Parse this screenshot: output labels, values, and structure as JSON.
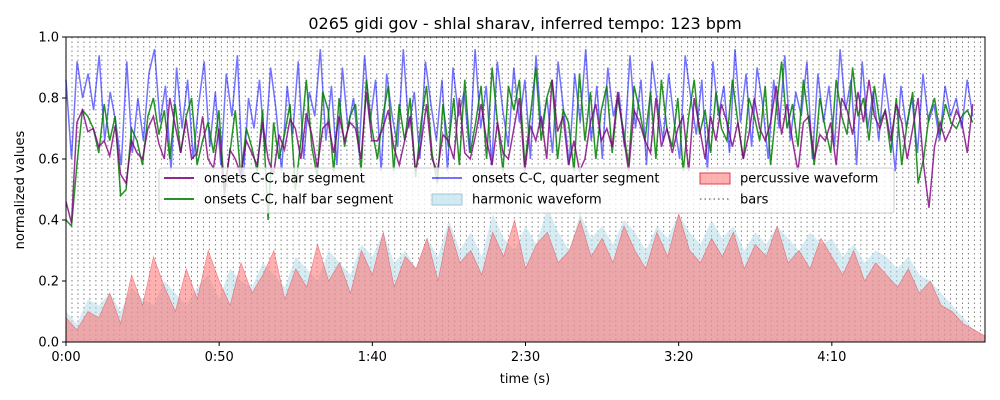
{
  "chart_data": {
    "type": "line",
    "title": "0265 gidi gov - shlal sharav, inferred tempo: 123 bpm",
    "xlabel": "time (s)",
    "ylabel": "normalized values",
    "xlim": [
      0,
      300
    ],
    "ylim": [
      0,
      1.0
    ],
    "x_ticks": [
      {
        "value": 0,
        "label": "0:00"
      },
      {
        "value": 50,
        "label": "0:50"
      },
      {
        "value": 100,
        "label": "1:40"
      },
      {
        "value": 150,
        "label": "2:30"
      },
      {
        "value": 200,
        "label": "3:20"
      },
      {
        "value": 250,
        "label": "4:10"
      }
    ],
    "y_ticks": [
      {
        "value": 0.0,
        "label": "0.0"
      },
      {
        "value": 0.2,
        "label": "0.2"
      },
      {
        "value": 0.4,
        "label": "0.4"
      },
      {
        "value": 0.6,
        "label": "0.6"
      },
      {
        "value": 0.8,
        "label": "0.8"
      },
      {
        "value": 1.0,
        "label": "1.0"
      }
    ],
    "legend_position": "center",
    "bars_period_s": 1.951,
    "series": [
      {
        "name": "onsets C-C, bar segment",
        "kind": "line",
        "color": "#800080",
        "values": [
          0.46,
          0.39,
          0.72,
          0.76,
          0.69,
          0.7,
          0.64,
          0.66,
          0.61,
          0.71,
          0.55,
          0.52,
          0.66,
          0.62,
          0.6,
          0.7,
          0.74,
          0.65,
          0.6,
          0.8,
          0.71,
          0.62,
          0.73,
          0.6,
          0.62,
          0.74,
          0.6,
          0.57,
          0.7,
          0.48,
          0.63,
          0.6,
          0.55,
          0.66,
          0.62,
          0.58,
          0.72,
          0.6,
          0.55,
          0.68,
          0.63,
          0.73,
          0.7,
          0.6,
          0.75,
          0.68,
          0.57,
          0.7,
          0.72,
          0.62,
          0.74,
          0.66,
          0.72,
          0.7,
          0.6,
          0.82,
          0.66,
          0.66,
          0.7,
          0.76,
          0.64,
          0.58,
          0.66,
          0.74,
          0.56,
          0.65,
          0.78,
          0.6,
          0.56,
          0.68,
          0.66,
          0.6,
          0.8,
          0.62,
          0.6,
          0.68,
          0.78,
          0.66,
          0.58,
          0.72,
          0.62,
          0.6,
          0.7,
          0.8,
          0.56,
          0.71,
          0.66,
          0.74,
          0.6,
          0.86,
          0.69,
          0.74,
          0.58,
          0.66,
          0.56,
          0.6,
          0.72,
          0.78,
          0.66,
          0.7,
          0.64,
          0.82,
          0.68,
          0.56,
          0.76,
          0.72,
          0.66,
          0.62,
          0.8,
          0.64,
          0.7,
          0.62,
          0.7,
          0.74,
          0.56,
          0.8,
          0.7,
          0.6,
          0.74,
          0.66,
          0.78,
          0.72,
          0.64,
          0.72,
          0.6,
          0.68,
          0.8,
          0.7,
          0.66,
          0.72,
          0.84,
          0.68,
          0.78,
          0.66,
          0.56,
          0.72,
          0.74,
          0.6,
          0.68,
          0.66,
          0.72,
          0.58,
          0.8,
          0.76,
          0.68,
          0.82,
          0.72,
          0.86,
          0.74,
          0.7,
          0.76,
          0.66,
          0.78,
          0.72,
          0.6,
          0.7,
          0.8,
          0.58,
          0.44,
          0.64,
          0.72,
          0.66,
          0.7,
          0.76,
          0.72,
          0.62,
          0.78
        ]
      },
      {
        "name": "onsets C-C, half bar segment",
        "kind": "line",
        "color": "#008000",
        "values": [
          0.4,
          0.38,
          0.58,
          0.76,
          0.74,
          0.7,
          0.62,
          0.78,
          0.66,
          0.74,
          0.48,
          0.5,
          0.7,
          0.66,
          0.58,
          0.74,
          0.8,
          0.68,
          0.76,
          0.6,
          0.78,
          0.62,
          0.74,
          0.8,
          0.58,
          0.66,
          0.72,
          0.62,
          0.76,
          0.5,
          0.62,
          0.76,
          0.54,
          0.7,
          0.64,
          0.56,
          0.76,
          0.4,
          0.72,
          0.6,
          0.68,
          0.78,
          0.5,
          0.66,
          0.86,
          0.64,
          0.54,
          0.82,
          0.76,
          0.56,
          0.8,
          0.64,
          0.74,
          0.78,
          0.56,
          0.86,
          0.7,
          0.6,
          0.74,
          0.84,
          0.56,
          0.78,
          0.66,
          0.8,
          0.54,
          0.72,
          0.84,
          0.62,
          0.52,
          0.78,
          0.64,
          0.8,
          0.58,
          0.86,
          0.62,
          0.72,
          0.84,
          0.6,
          0.9,
          0.72,
          0.56,
          0.84,
          0.76,
          0.86,
          0.58,
          0.74,
          0.9,
          0.66,
          0.8,
          0.86,
          0.6,
          0.76,
          0.72,
          0.56,
          0.88,
          0.66,
          0.82,
          0.6,
          0.76,
          0.84,
          0.62,
          0.8,
          0.7,
          0.58,
          0.84,
          0.76,
          0.66,
          0.82,
          0.6,
          0.86,
          0.7,
          0.64,
          0.8,
          0.56,
          0.74,
          0.86,
          0.68,
          0.76,
          0.62,
          0.82,
          0.7,
          0.66,
          0.86,
          0.72,
          0.6,
          0.8,
          0.74,
          0.66,
          0.84,
          0.58,
          0.76,
          0.92,
          0.7,
          0.78,
          0.64,
          0.86,
          0.72,
          0.58,
          0.8,
          0.7,
          0.62,
          0.86,
          0.74,
          0.68,
          0.9,
          0.74,
          0.8,
          0.66,
          0.84,
          0.72,
          0.76,
          0.62,
          0.8,
          0.58,
          0.72,
          0.82,
          0.52,
          0.6,
          0.74,
          0.8,
          0.68,
          0.78,
          0.72,
          0.7,
          0.74,
          0.76,
          0.72
        ]
      },
      {
        "name": "onsets C-C, quarter segment",
        "kind": "line",
        "color": "#0000ff",
        "opacity": 0.55,
        "values": [
          0.86,
          0.6,
          0.92,
          0.8,
          0.88,
          0.76,
          0.94,
          0.66,
          0.82,
          0.72,
          0.58,
          0.92,
          0.62,
          0.8,
          0.66,
          0.88,
          0.96,
          0.72,
          0.84,
          0.56,
          0.9,
          0.7,
          0.86,
          0.6,
          0.78,
          0.92,
          0.64,
          0.82,
          0.58,
          0.88,
          0.74,
          0.94,
          0.52,
          0.8,
          0.7,
          0.86,
          0.62,
          0.9,
          0.76,
          0.56,
          0.84,
          0.68,
          0.92,
          0.6,
          0.82,
          0.74,
          0.96,
          0.66,
          0.84,
          0.58,
          0.9,
          0.7,
          0.8,
          0.62,
          0.94,
          0.72,
          0.86,
          0.56,
          0.88,
          0.74,
          0.64,
          0.96,
          0.7,
          0.82,
          0.6,
          0.92,
          0.78,
          0.66,
          0.86,
          0.56,
          0.9,
          0.74,
          0.82,
          0.62,
          0.96,
          0.7,
          0.84,
          0.58,
          0.92,
          0.76,
          0.64,
          0.9,
          0.72,
          0.86,
          0.6,
          0.94,
          0.7,
          0.8,
          0.62,
          0.92,
          0.76,
          0.58,
          0.88,
          0.72,
          0.96,
          0.66,
          0.84,
          0.6,
          0.9,
          0.74,
          0.82,
          0.64,
          0.94,
          0.7,
          0.86,
          0.58,
          0.92,
          0.78,
          0.66,
          0.88,
          0.72,
          0.6,
          0.94,
          0.8,
          0.68,
          0.86,
          0.56,
          0.92,
          0.74,
          0.84,
          0.62,
          0.96,
          0.72,
          0.88,
          0.64,
          0.9,
          0.78,
          0.6,
          0.86,
          0.7,
          0.94,
          0.66,
          0.82,
          0.74,
          0.92,
          0.6,
          0.88,
          0.72,
          0.84,
          0.64,
          0.96,
          0.76,
          0.86,
          0.58,
          0.92,
          0.7,
          0.82,
          0.66,
          0.88,
          0.74,
          0.56,
          0.84,
          0.7,
          0.8,
          0.62,
          0.88,
          0.72,
          0.78,
          0.66,
          0.84,
          0.74,
          0.8,
          0.7,
          0.86,
          0.74
        ]
      },
      {
        "name": "harmonic waveform",
        "kind": "area",
        "color": "#add8e6",
        "values": [
          0.1,
          0.06,
          0.14,
          0.12,
          0.16,
          0.1,
          0.18,
          0.14,
          0.12,
          0.2,
          0.16,
          0.12,
          0.18,
          0.22,
          0.14,
          0.24,
          0.2,
          0.18,
          0.26,
          0.22,
          0.18,
          0.28,
          0.24,
          0.2,
          0.3,
          0.26,
          0.22,
          0.32,
          0.28,
          0.36,
          0.26,
          0.3,
          0.24,
          0.34,
          0.28,
          0.4,
          0.3,
          0.36,
          0.28,
          0.42,
          0.34,
          0.3,
          0.38,
          0.32,
          0.44,
          0.36,
          0.3,
          0.42,
          0.34,
          0.38,
          0.32,
          0.4,
          0.36,
          0.3,
          0.38,
          0.34,
          0.42,
          0.36,
          0.32,
          0.4,
          0.34,
          0.38,
          0.3,
          0.36,
          0.32,
          0.38,
          0.34,
          0.3,
          0.36,
          0.32,
          0.34,
          0.28,
          0.32,
          0.26,
          0.3,
          0.28,
          0.24,
          0.28,
          0.22,
          0.2,
          0.16,
          0.12,
          0.08,
          0.04,
          0.02
        ]
      },
      {
        "name": "percussive waveform",
        "kind": "area",
        "color": "#ff6f6f",
        "values": [
          0.08,
          0.04,
          0.1,
          0.08,
          0.16,
          0.06,
          0.22,
          0.12,
          0.28,
          0.18,
          0.1,
          0.24,
          0.14,
          0.3,
          0.2,
          0.12,
          0.26,
          0.16,
          0.22,
          0.3,
          0.14,
          0.24,
          0.18,
          0.32,
          0.2,
          0.26,
          0.16,
          0.3,
          0.22,
          0.36,
          0.18,
          0.28,
          0.24,
          0.34,
          0.2,
          0.38,
          0.26,
          0.3,
          0.22,
          0.36,
          0.28,
          0.4,
          0.24,
          0.32,
          0.36,
          0.26,
          0.3,
          0.4,
          0.28,
          0.34,
          0.26,
          0.38,
          0.3,
          0.24,
          0.36,
          0.28,
          0.42,
          0.3,
          0.26,
          0.34,
          0.28,
          0.36,
          0.24,
          0.32,
          0.28,
          0.38,
          0.26,
          0.3,
          0.24,
          0.34,
          0.28,
          0.22,
          0.3,
          0.2,
          0.26,
          0.22,
          0.18,
          0.24,
          0.16,
          0.2,
          0.12,
          0.1,
          0.06,
          0.04,
          0.02
        ]
      },
      {
        "name": "bars",
        "kind": "vlines",
        "color": "#808080"
      }
    ]
  }
}
